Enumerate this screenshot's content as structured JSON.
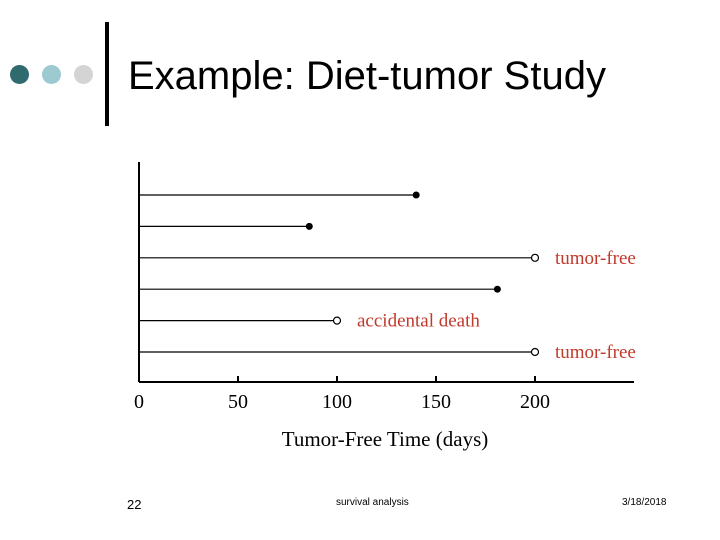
{
  "slide": {
    "title": "Example: Diet-tumor Study",
    "accent_colors": [
      "#2f6a6e",
      "#9ccad0",
      "#d4d4d4"
    ],
    "footer": {
      "page_number": "22",
      "center": "survival analysis",
      "date": "3/18/2018"
    }
  },
  "chart_data": {
    "type": "survival-lines",
    "xlabel": "Tumor-Free Time (days)",
    "xlim": [
      0,
      250
    ],
    "ticks": [
      0,
      50,
      100,
      150,
      200
    ],
    "subjects": [
      {
        "time": 140,
        "event": "tumor",
        "label": ""
      },
      {
        "time": 86,
        "event": "tumor",
        "label": ""
      },
      {
        "time": 200,
        "event": "censored",
        "label": "tumor-free"
      },
      {
        "time": 181,
        "event": "tumor",
        "label": ""
      },
      {
        "time": 100,
        "event": "censored",
        "label": "accidental death"
      },
      {
        "time": 200,
        "event": "censored",
        "label": "tumor-free"
      }
    ],
    "label_color": "#c0392b"
  }
}
